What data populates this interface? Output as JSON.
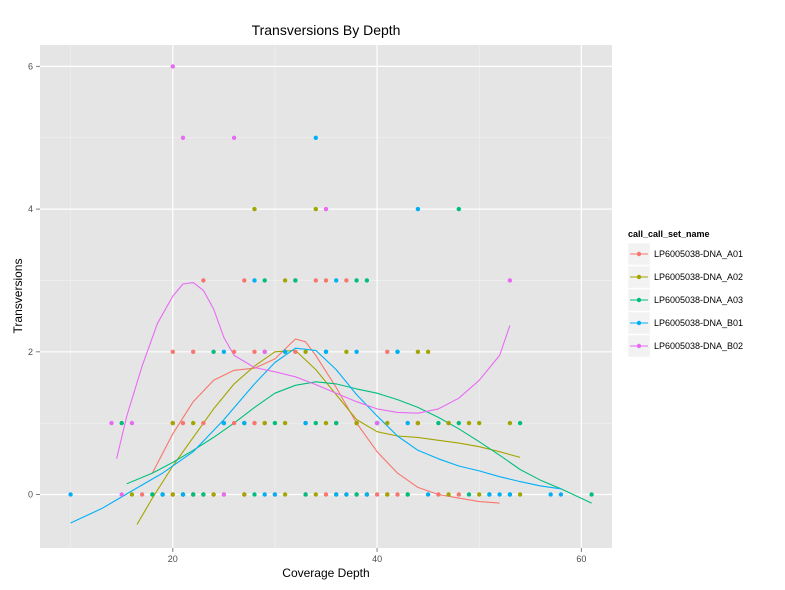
{
  "chart_data": {
    "type": "scatter",
    "title": "Transversions By Depth",
    "xlabel": "Coverage Depth",
    "ylabel": "Transversions",
    "xlim": [
      7,
      63
    ],
    "ylim": [
      -0.75,
      6.3
    ],
    "xticks": [
      20,
      40,
      60
    ],
    "yticks": [
      0,
      2,
      4,
      6
    ],
    "grid": true,
    "background": "#e5e5e5",
    "legend": {
      "title": "call_call_set_name",
      "position": "right"
    },
    "series": [
      {
        "name": "LP6005038-DNA_A01",
        "color": "#f8766d",
        "points": [
          [
            17,
            0
          ],
          [
            20,
            0
          ],
          [
            21,
            0
          ],
          [
            22,
            0
          ],
          [
            23,
            0
          ],
          [
            24,
            0
          ],
          [
            25,
            0
          ],
          [
            27,
            0
          ],
          [
            30,
            0
          ],
          [
            33,
            0
          ],
          [
            35,
            0
          ],
          [
            37,
            0
          ],
          [
            38,
            0
          ],
          [
            39,
            0
          ],
          [
            40,
            0
          ],
          [
            41,
            0
          ],
          [
            42,
            0
          ],
          [
            46,
            0
          ],
          [
            48,
            0
          ],
          [
            20,
            1
          ],
          [
            21,
            1
          ],
          [
            23,
            1
          ],
          [
            26,
            1
          ],
          [
            28,
            1
          ],
          [
            29,
            1
          ],
          [
            33,
            1
          ],
          [
            36,
            1
          ],
          [
            38,
            1
          ],
          [
            40,
            1
          ],
          [
            44,
            1
          ],
          [
            47,
            1
          ],
          [
            20,
            2
          ],
          [
            22,
            2
          ],
          [
            26,
            2
          ],
          [
            28,
            2
          ],
          [
            32,
            2
          ],
          [
            41,
            2
          ],
          [
            23,
            3
          ],
          [
            27,
            3
          ],
          [
            32,
            3
          ],
          [
            34,
            3
          ],
          [
            35,
            3
          ],
          [
            37,
            3
          ]
        ],
        "smooth": [
          [
            18,
            0.3
          ],
          [
            20,
            0.85
          ],
          [
            22,
            1.3
          ],
          [
            24,
            1.6
          ],
          [
            26,
            1.74
          ],
          [
            28,
            1.77
          ],
          [
            30,
            1.9
          ],
          [
            32,
            2.18
          ],
          [
            33,
            2.14
          ],
          [
            34,
            1.95
          ],
          [
            36,
            1.5
          ],
          [
            38,
            1.0
          ],
          [
            40,
            0.6
          ],
          [
            42,
            0.3
          ],
          [
            44,
            0.1
          ],
          [
            46,
            0.0
          ],
          [
            48,
            -0.05
          ],
          [
            50,
            -0.1
          ],
          [
            52,
            -0.12
          ]
        ]
      },
      {
        "name": "LP6005038-DNA_A02",
        "color": "#a3a500",
        "points": [
          [
            16,
            0
          ],
          [
            18,
            0
          ],
          [
            20,
            0
          ],
          [
            21,
            0
          ],
          [
            22,
            0
          ],
          [
            24,
            0
          ],
          [
            27,
            0
          ],
          [
            31,
            0
          ],
          [
            34,
            0
          ],
          [
            36,
            0
          ],
          [
            39,
            0
          ],
          [
            41,
            0
          ],
          [
            43,
            0
          ],
          [
            47,
            0
          ],
          [
            50,
            0
          ],
          [
            54,
            0
          ],
          [
            20,
            1
          ],
          [
            22,
            1
          ],
          [
            25,
            1
          ],
          [
            27,
            1
          ],
          [
            29,
            1
          ],
          [
            31,
            1
          ],
          [
            35,
            1
          ],
          [
            38,
            1
          ],
          [
            41,
            1
          ],
          [
            44,
            1
          ],
          [
            47,
            1
          ],
          [
            49,
            1
          ],
          [
            50,
            1
          ],
          [
            53,
            1
          ],
          [
            29,
            2
          ],
          [
            33,
            2
          ],
          [
            37,
            2
          ],
          [
            44,
            2
          ],
          [
            45,
            2
          ],
          [
            31,
            3
          ],
          [
            28,
            4
          ],
          [
            34,
            4
          ]
        ],
        "smooth": [
          [
            16.5,
            -0.42
          ],
          [
            18,
            -0.05
          ],
          [
            20,
            0.4
          ],
          [
            22,
            0.8
          ],
          [
            24,
            1.2
          ],
          [
            26,
            1.55
          ],
          [
            28,
            1.8
          ],
          [
            30,
            2.0
          ],
          [
            32,
            2.02
          ],
          [
            34,
            1.75
          ],
          [
            36,
            1.4
          ],
          [
            38,
            1.05
          ],
          [
            40,
            0.88
          ],
          [
            42,
            0.82
          ],
          [
            44,
            0.8
          ],
          [
            46,
            0.76
          ],
          [
            48,
            0.72
          ],
          [
            50,
            0.67
          ],
          [
            52,
            0.6
          ],
          [
            54,
            0.52
          ]
        ]
      },
      {
        "name": "LP6005038-DNA_A03",
        "color": "#00bf7d",
        "points": [
          [
            18,
            0
          ],
          [
            19,
            0
          ],
          [
            21,
            0
          ],
          [
            22,
            0
          ],
          [
            23,
            0
          ],
          [
            28,
            0
          ],
          [
            33,
            0
          ],
          [
            38,
            0
          ],
          [
            43,
            0
          ],
          [
            49,
            0
          ],
          [
            51,
            0
          ],
          [
            53,
            0
          ],
          [
            61,
            0
          ],
          [
            15,
            1
          ],
          [
            30,
            1
          ],
          [
            34,
            1
          ],
          [
            36,
            1
          ],
          [
            40,
            1
          ],
          [
            46,
            1
          ],
          [
            48,
            1
          ],
          [
            54,
            1
          ],
          [
            24,
            2
          ],
          [
            31,
            2
          ],
          [
            35,
            2
          ],
          [
            42,
            2
          ],
          [
            29,
            3
          ],
          [
            32,
            3
          ],
          [
            38,
            3
          ],
          [
            39,
            3
          ],
          [
            48,
            4
          ]
        ],
        "smooth": [
          [
            15.5,
            0.15
          ],
          [
            18,
            0.3
          ],
          [
            20,
            0.45
          ],
          [
            22,
            0.62
          ],
          [
            24,
            0.8
          ],
          [
            26,
            1.0
          ],
          [
            28,
            1.22
          ],
          [
            30,
            1.42
          ],
          [
            32,
            1.53
          ],
          [
            34,
            1.58
          ],
          [
            36,
            1.55
          ],
          [
            38,
            1.48
          ],
          [
            40,
            1.42
          ],
          [
            42,
            1.33
          ],
          [
            44,
            1.22
          ],
          [
            46,
            1.08
          ],
          [
            48,
            0.92
          ],
          [
            50,
            0.74
          ],
          [
            52,
            0.55
          ],
          [
            54,
            0.35
          ],
          [
            56,
            0.2
          ],
          [
            58,
            0.08
          ],
          [
            61,
            -0.12
          ]
        ]
      },
      {
        "name": "LP6005038-DNA_B01",
        "color": "#00b0f6",
        "points": [
          [
            10,
            0
          ],
          [
            19,
            0
          ],
          [
            21,
            0
          ],
          [
            29,
            0
          ],
          [
            30,
            0
          ],
          [
            36,
            0
          ],
          [
            37,
            0
          ],
          [
            39,
            0
          ],
          [
            45,
            0
          ],
          [
            51,
            0
          ],
          [
            52,
            0
          ],
          [
            53,
            0
          ],
          [
            57,
            0
          ],
          [
            58,
            0
          ],
          [
            25,
            1
          ],
          [
            27,
            1
          ],
          [
            33,
            1
          ],
          [
            40,
            1
          ],
          [
            43,
            1
          ],
          [
            25,
            2
          ],
          [
            31,
            2
          ],
          [
            35,
            2
          ],
          [
            38,
            2
          ],
          [
            42,
            2
          ],
          [
            28,
            3
          ],
          [
            36,
            3
          ],
          [
            44,
            4
          ],
          [
            34,
            5
          ]
        ],
        "smooth": [
          [
            10,
            -0.4
          ],
          [
            13,
            -0.2
          ],
          [
            16,
            0.05
          ],
          [
            19,
            0.3
          ],
          [
            22,
            0.6
          ],
          [
            25,
            1.05
          ],
          [
            28,
            1.55
          ],
          [
            30,
            1.85
          ],
          [
            32,
            2.05
          ],
          [
            34,
            2.02
          ],
          [
            36,
            1.75
          ],
          [
            38,
            1.4
          ],
          [
            40,
            1.1
          ],
          [
            42,
            0.82
          ],
          [
            44,
            0.62
          ],
          [
            46,
            0.5
          ],
          [
            48,
            0.4
          ],
          [
            50,
            0.33
          ],
          [
            52,
            0.25
          ],
          [
            54,
            0.18
          ],
          [
            56,
            0.12
          ],
          [
            58,
            0.08
          ]
        ]
      },
      {
        "name": "LP6005038-DNA_B02",
        "color": "#e76bf3",
        "points": [
          [
            15,
            0
          ],
          [
            25,
            0
          ],
          [
            14,
            1
          ],
          [
            16,
            1
          ],
          [
            40,
            1
          ],
          [
            29,
            2
          ],
          [
            53,
            3
          ],
          [
            35,
            4
          ],
          [
            21,
            5
          ],
          [
            26,
            5
          ],
          [
            20,
            6
          ]
        ],
        "smooth": [
          [
            14.5,
            0.5
          ],
          [
            15.5,
            1.1
          ],
          [
            17,
            1.8
          ],
          [
            18.5,
            2.4
          ],
          [
            20,
            2.78
          ],
          [
            21,
            2.95
          ],
          [
            22,
            2.97
          ],
          [
            23,
            2.86
          ],
          [
            24,
            2.6
          ],
          [
            25,
            2.2
          ],
          [
            26,
            1.95
          ],
          [
            28,
            1.78
          ],
          [
            30,
            1.72
          ],
          [
            32,
            1.65
          ],
          [
            34,
            1.54
          ],
          [
            36,
            1.42
          ],
          [
            38,
            1.3
          ],
          [
            40,
            1.2
          ],
          [
            42,
            1.15
          ],
          [
            44,
            1.14
          ],
          [
            46,
            1.2
          ],
          [
            48,
            1.35
          ],
          [
            50,
            1.6
          ],
          [
            52,
            1.95
          ],
          [
            53,
            2.37
          ]
        ]
      }
    ]
  }
}
